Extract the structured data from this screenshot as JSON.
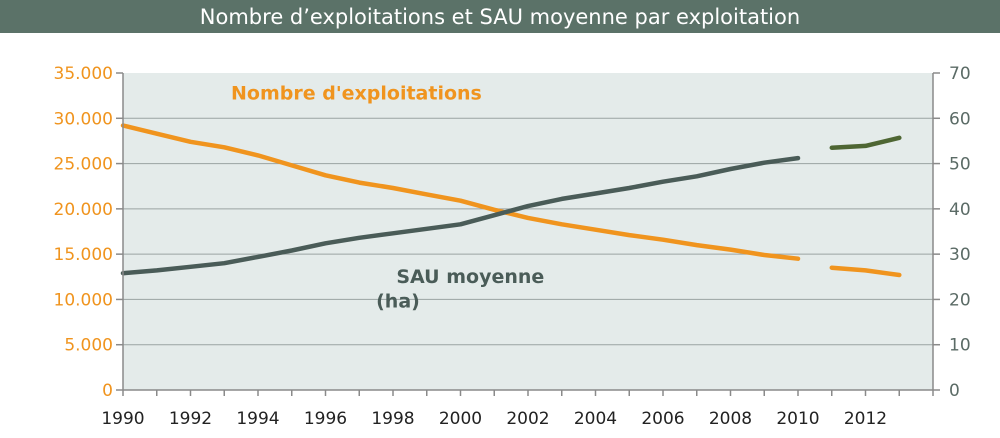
{
  "chart_data": {
    "type": "line",
    "title": "Nombre d’exploitations et SAU moyenne par exploitation",
    "x_ticks": [
      "1990",
      "1992",
      "1994",
      "1996",
      "1998",
      "2000",
      "2002",
      "2004",
      "2006",
      "2008",
      "2010",
      "2012"
    ],
    "xlim": [
      1990,
      2014
    ],
    "left_axis": {
      "ylim": [
        0,
        35000
      ],
      "ticks": [
        "0",
        "5.000",
        "10.000",
        "15.000",
        "20.000",
        "25.000",
        "30.000",
        "35.000"
      ],
      "color": "#f0941e"
    },
    "right_axis": {
      "ylim": [
        0,
        70
      ],
      "ticks": [
        "0",
        "10",
        "20",
        "30",
        "40",
        "50",
        "60",
        "70"
      ],
      "color": "#5b6b66"
    },
    "grid": "horizontal",
    "series": [
      {
        "name": "Nombre d'exploitations",
        "axis": "left",
        "color": "#f0941e",
        "x": [
          1990,
          1991,
          1992,
          1993,
          1994,
          1995,
          1996,
          1997,
          1998,
          1999,
          2000,
          2001,
          2002,
          2003,
          2004,
          2005,
          2006,
          2007,
          2008,
          2009,
          2010
        ],
        "values": [
          29200,
          28300,
          27400,
          26800,
          25900,
          24800,
          23700,
          22900,
          22300,
          21600,
          20900,
          19900,
          19000,
          18300,
          17700,
          17100,
          16600,
          16000,
          15500,
          14900,
          14500
        ]
      },
      {
        "name": "Nombre d'exploitations",
        "axis": "left",
        "color": "#f0941e",
        "dashed": true,
        "x": [
          2011,
          2012,
          2013
        ],
        "values": [
          13500,
          13200,
          12700
        ]
      },
      {
        "name": "SAU moyenne (ha)",
        "axis": "right",
        "color": "#4a5c58",
        "x": [
          1990,
          1991,
          1992,
          1993,
          1994,
          1995,
          1996,
          1997,
          1998,
          1999,
          2000,
          2001,
          2002,
          2003,
          2004,
          2005,
          2006,
          2007,
          2008,
          2009,
          2010
        ],
        "values": [
          25.8,
          26.4,
          27.2,
          28.0,
          29.4,
          30.8,
          32.4,
          33.6,
          34.6,
          35.6,
          36.6,
          38.6,
          40.6,
          42.2,
          43.4,
          44.6,
          46.0,
          47.2,
          48.8,
          50.2,
          51.2
        ]
      },
      {
        "name": "SAU moyenne (ha)",
        "axis": "right",
        "color": "#4e6633",
        "x": [
          2011,
          2012,
          2013
        ],
        "values": [
          53.5,
          53.9,
          55.7
        ]
      }
    ],
    "annotations": [
      {
        "text": "Nombre d'exploitations",
        "anchor_x": 1993.2,
        "anchor_y_left": 32100,
        "class": "ann-exp"
      },
      {
        "text": "SAU moyenne",
        "anchor_x": 1998.1,
        "anchor_y_left": 11800,
        "class": "ann-sau"
      },
      {
        "text": "(ha)",
        "anchor_x": 1997.5,
        "anchor_y_left": 9100,
        "class": "ann-sau"
      }
    ]
  }
}
